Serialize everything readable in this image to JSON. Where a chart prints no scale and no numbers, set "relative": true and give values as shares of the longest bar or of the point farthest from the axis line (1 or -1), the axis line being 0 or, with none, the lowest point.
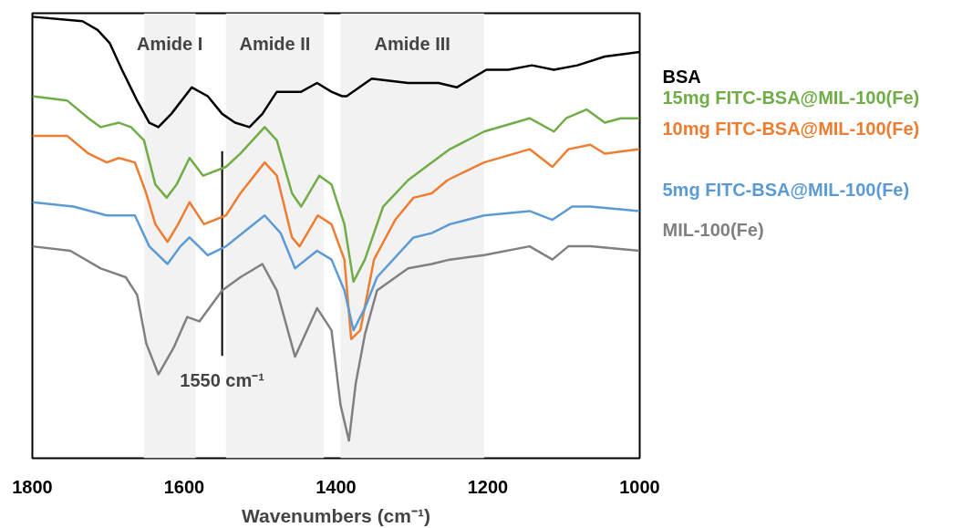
{
  "chart_data": {
    "type": "line",
    "relative": true,
    "xlabel": "Wavenumbers (cm⁻¹)",
    "xlim": [
      1800,
      1000
    ],
    "xticks": [
      1800,
      1600,
      1400,
      1200,
      1000
    ],
    "tick_labels": "x",
    "grid": false,
    "marker": "none",
    "line_style": "solid",
    "bands": [
      {
        "axis": "x",
        "from": 1653,
        "to": 1585,
        "label": "Amide I",
        "color": "#f2f2f2"
      },
      {
        "axis": "x",
        "from": 1545,
        "to": 1416,
        "label": "Amide II",
        "color": "#f2f2f2"
      },
      {
        "axis": "x",
        "from": 1394,
        "to": 1205,
        "label": "Amide III",
        "color": "#f2f2f2"
      }
    ],
    "ref_lines": [
      {
        "axis": "x",
        "value": 1550,
        "label": "1550 cm⁻¹",
        "color": "#000000"
      }
    ],
    "series": [
      {
        "name": "BSA",
        "color": "#000000",
        "x": [
          1800,
          1734,
          1714,
          1698,
          1682,
          1662,
          1646,
          1634,
          1617,
          1590,
          1569,
          1550,
          1533,
          1514,
          1497,
          1478,
          1458,
          1446,
          1425,
          1406,
          1392,
          1386,
          1353,
          1305,
          1265,
          1241,
          1202,
          1173,
          1142,
          1113,
          1082,
          1046,
          1000
        ],
        "values": [
          1.0,
          0.99,
          0.97,
          0.94,
          0.88,
          0.81,
          0.76,
          0.75,
          0.78,
          0.84,
          0.82,
          0.78,
          0.76,
          0.75,
          0.78,
          0.83,
          0.83,
          0.83,
          0.85,
          0.83,
          0.82,
          0.82,
          0.86,
          0.85,
          0.85,
          0.84,
          0.88,
          0.88,
          0.89,
          0.88,
          0.89,
          0.91,
          0.92
        ]
      },
      {
        "name": "15mg FITC-BSA@MIL-100(Fe)",
        "color": "#70ad47",
        "x": [
          1800,
          1754,
          1726,
          1710,
          1686,
          1670,
          1653,
          1638,
          1623,
          1610,
          1593,
          1575,
          1545,
          1526,
          1494,
          1478,
          1458,
          1446,
          1422,
          1406,
          1389,
          1377,
          1362,
          1338,
          1305,
          1274,
          1250,
          1205,
          1145,
          1113,
          1097,
          1070,
          1046,
          1025,
          1000
        ],
        "values": [
          0.82,
          0.81,
          0.77,
          0.75,
          0.76,
          0.75,
          0.72,
          0.62,
          0.59,
          0.62,
          0.68,
          0.64,
          0.66,
          0.69,
          0.75,
          0.72,
          0.6,
          0.57,
          0.64,
          0.62,
          0.53,
          0.4,
          0.45,
          0.57,
          0.63,
          0.67,
          0.7,
          0.74,
          0.77,
          0.74,
          0.77,
          0.79,
          0.76,
          0.77,
          0.77
        ]
      },
      {
        "name": "10mg FITC-BSA@MIL-100(Fe)",
        "color": "#ed7d31",
        "x": [
          1800,
          1754,
          1726,
          1702,
          1686,
          1665,
          1650,
          1638,
          1622,
          1608,
          1593,
          1574,
          1545,
          1526,
          1494,
          1478,
          1458,
          1448,
          1424,
          1406,
          1389,
          1380,
          1368,
          1350,
          1322,
          1298,
          1274,
          1253,
          1205,
          1145,
          1115,
          1094,
          1065,
          1046,
          1000
        ],
        "values": [
          0.73,
          0.73,
          0.69,
          0.67,
          0.68,
          0.67,
          0.6,
          0.53,
          0.49,
          0.53,
          0.58,
          0.53,
          0.55,
          0.6,
          0.67,
          0.64,
          0.5,
          0.48,
          0.55,
          0.53,
          0.45,
          0.27,
          0.29,
          0.45,
          0.54,
          0.59,
          0.6,
          0.63,
          0.67,
          0.7,
          0.66,
          0.7,
          0.71,
          0.69,
          0.7
        ]
      },
      {
        "name": "5mg FITC-BSA@MIL-100(Fe)",
        "color": "#5b9bd5",
        "x": [
          1800,
          1746,
          1702,
          1665,
          1646,
          1622,
          1605,
          1593,
          1569,
          1545,
          1494,
          1473,
          1454,
          1425,
          1406,
          1389,
          1377,
          1362,
          1346,
          1298,
          1274,
          1250,
          1205,
          1145,
          1115,
          1089,
          1065,
          1000
        ],
        "values": [
          0.58,
          0.57,
          0.55,
          0.55,
          0.48,
          0.44,
          0.48,
          0.5,
          0.46,
          0.48,
          0.55,
          0.51,
          0.43,
          0.47,
          0.45,
          0.38,
          0.29,
          0.34,
          0.41,
          0.5,
          0.51,
          0.53,
          0.55,
          0.56,
          0.54,
          0.57,
          0.57,
          0.56
        ]
      },
      {
        "name": "MIL-100(Fe)",
        "color": "#808080",
        "x": [
          1800,
          1750,
          1710,
          1677,
          1662,
          1650,
          1634,
          1614,
          1596,
          1580,
          1550,
          1526,
          1497,
          1478,
          1454,
          1425,
          1406,
          1394,
          1383,
          1374,
          1362,
          1346,
          1305,
          1274,
          1250,
          1205,
          1145,
          1115,
          1094,
          1065,
          1000
        ],
        "values": [
          0.48,
          0.47,
          0.43,
          0.41,
          0.37,
          0.26,
          0.19,
          0.25,
          0.32,
          0.31,
          0.38,
          0.41,
          0.44,
          0.38,
          0.23,
          0.34,
          0.29,
          0.12,
          0.04,
          0.17,
          0.28,
          0.38,
          0.43,
          0.44,
          0.45,
          0.46,
          0.48,
          0.45,
          0.48,
          0.48,
          0.47
        ]
      }
    ]
  }
}
